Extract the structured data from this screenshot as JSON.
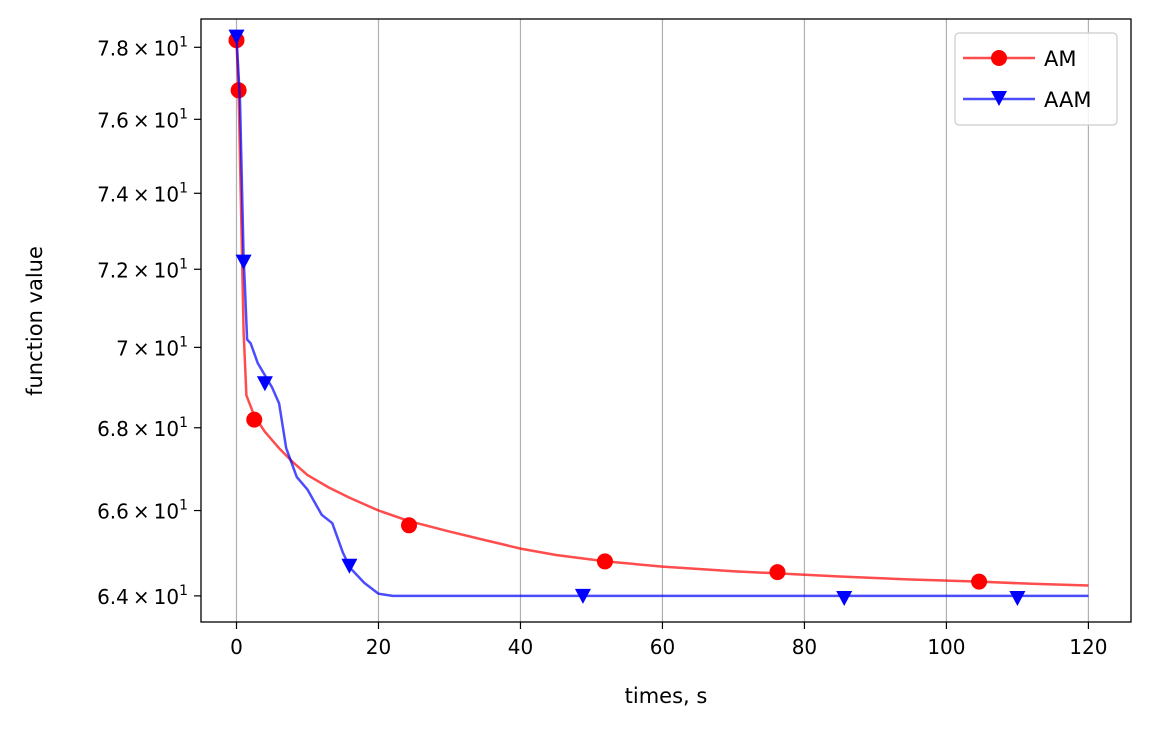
{
  "chart_data": {
    "type": "line",
    "xlabel": "times, s",
    "ylabel": "function value",
    "xlim": [
      -5,
      126
    ],
    "ylim": [
      63.4,
      78.8
    ],
    "yscale": "log",
    "grid": "x-only",
    "legend_position": "upper right",
    "x_ticks": [
      0,
      20,
      40,
      60,
      80,
      100,
      120
    ],
    "x_tick_labels": [
      "0",
      "20",
      "40",
      "60",
      "80",
      "100",
      "120"
    ],
    "y_ticks": [
      64,
      66,
      68,
      70,
      72,
      74,
      76,
      78
    ],
    "y_tick_labels": [
      {
        "mantissa": "6.4",
        "exp": "1"
      },
      {
        "mantissa": "6.6",
        "exp": "1"
      },
      {
        "mantissa": "6.8",
        "exp": "1"
      },
      {
        "mantissa": "7",
        "exp": "1"
      },
      {
        "mantissa": "7.2",
        "exp": "1"
      },
      {
        "mantissa": "7.4",
        "exp": "1"
      },
      {
        "mantissa": "7.6",
        "exp": "1"
      },
      {
        "mantissa": "7.8",
        "exp": "1"
      }
    ],
    "series": [
      {
        "name": "AM",
        "color": "#ff0000",
        "marker": "circle",
        "line": [
          [
            0,
            78.2
          ],
          [
            0.3,
            76.8
          ],
          [
            1.0,
            70.4
          ],
          [
            1.4,
            68.8
          ],
          [
            2.5,
            68.3
          ],
          [
            4,
            67.9
          ],
          [
            6,
            67.5
          ],
          [
            8,
            67.15
          ],
          [
            10,
            66.85
          ],
          [
            13,
            66.55
          ],
          [
            16,
            66.3
          ],
          [
            20,
            66.0
          ],
          [
            24.3,
            65.75
          ],
          [
            30,
            65.5
          ],
          [
            35,
            65.3
          ],
          [
            40,
            65.1
          ],
          [
            45,
            64.95
          ],
          [
            52,
            64.8
          ],
          [
            60,
            64.68
          ],
          [
            70,
            64.57
          ],
          [
            76.2,
            64.52
          ],
          [
            85,
            64.45
          ],
          [
            95,
            64.38
          ],
          [
            104.6,
            64.33
          ],
          [
            112,
            64.28
          ],
          [
            120,
            64.24
          ]
        ],
        "markers": [
          [
            0,
            78.2
          ],
          [
            0.3,
            76.8
          ],
          [
            2.5,
            68.2
          ],
          [
            24.3,
            65.65
          ],
          [
            51.9,
            64.8
          ],
          [
            76.2,
            64.55
          ],
          [
            104.6,
            64.33
          ]
        ]
      },
      {
        "name": "AAM",
        "color": "#0000ff",
        "marker": "triangle-down",
        "line": [
          [
            0,
            78.3
          ],
          [
            0.5,
            76.5
          ],
          [
            1.0,
            72.3
          ],
          [
            1.2,
            71.5
          ],
          [
            1.5,
            70.2
          ],
          [
            2,
            70.1
          ],
          [
            3,
            69.6
          ],
          [
            4,
            69.3
          ],
          [
            5,
            69.0
          ],
          [
            6,
            68.6
          ],
          [
            7,
            67.5
          ],
          [
            8.5,
            66.8
          ],
          [
            10,
            66.5
          ],
          [
            12,
            65.9
          ],
          [
            13.5,
            65.7
          ],
          [
            15,
            65.0
          ],
          [
            16,
            64.65
          ],
          [
            18,
            64.3
          ],
          [
            20,
            64.05
          ],
          [
            22,
            64.0
          ],
          [
            30,
            64.0
          ],
          [
            50,
            64.0
          ],
          [
            80,
            64.0
          ],
          [
            120,
            64.0
          ]
        ],
        "markers": [
          [
            0,
            78.3
          ],
          [
            1.0,
            72.2
          ],
          [
            4.0,
            69.1
          ],
          [
            15.9,
            64.7
          ],
          [
            48.8,
            64.0
          ],
          [
            85.6,
            63.95
          ],
          [
            110,
            63.95
          ]
        ]
      }
    ]
  }
}
